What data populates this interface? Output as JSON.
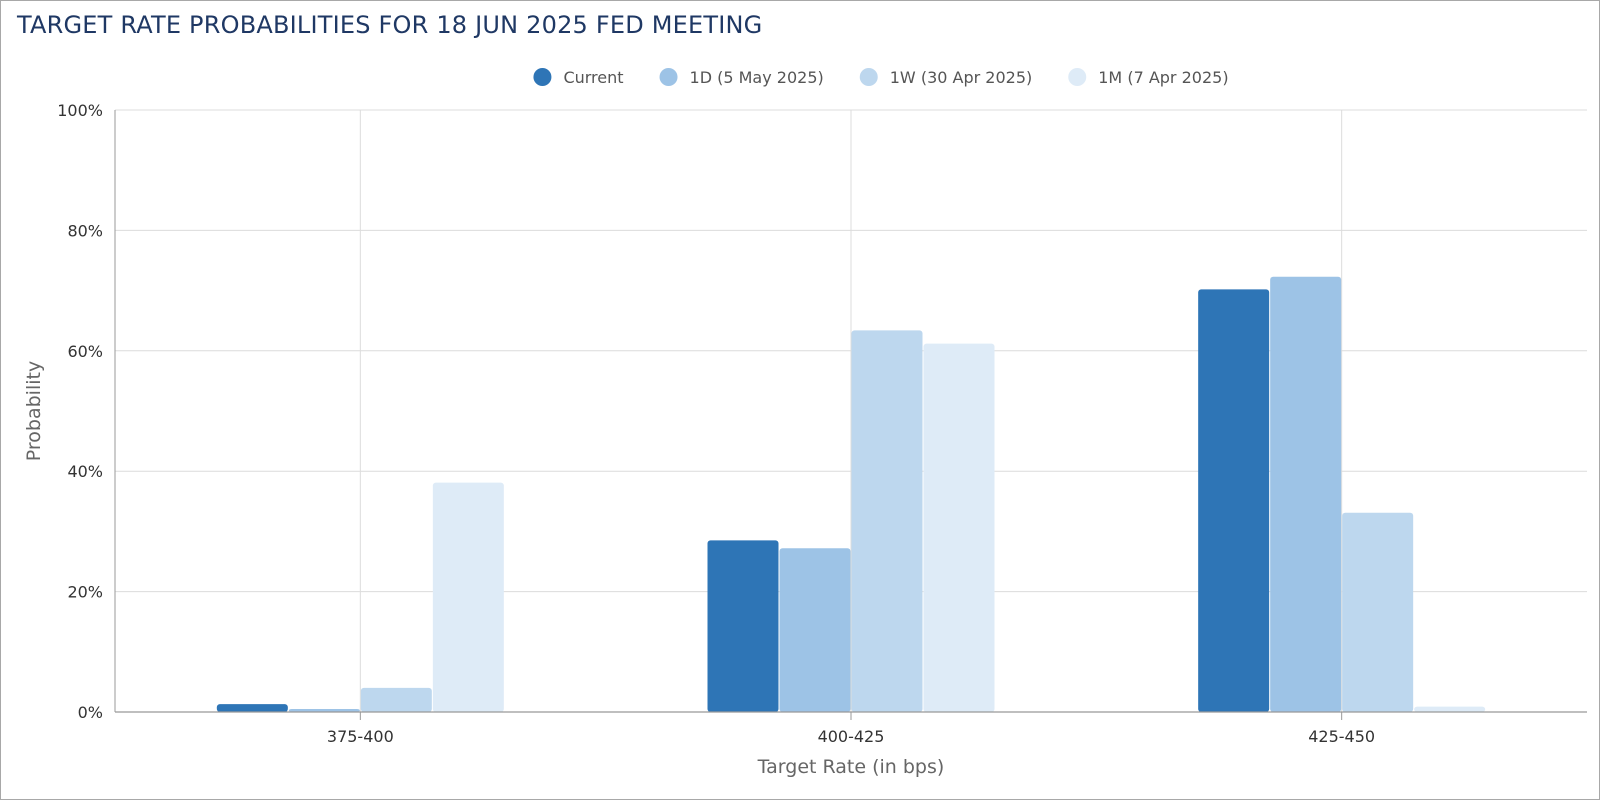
{
  "chart_data": {
    "type": "bar",
    "title": "TARGET RATE PROBABILITIES FOR 18 JUN 2025 FED MEETING",
    "xlabel": "Target Rate (in bps)",
    "ylabel": "Probability",
    "categories": [
      "375-400",
      "400-425",
      "425-450"
    ],
    "ylim": [
      0,
      100
    ],
    "yticks": [
      "0%",
      "20%",
      "40%",
      "60%",
      "80%",
      "100%"
    ],
    "ytick_values": [
      0,
      20,
      40,
      60,
      80,
      100
    ],
    "grid": true,
    "legend_position": "top-center",
    "series": [
      {
        "name": "Current",
        "color": "#2e75b6",
        "values": [
          1.3,
          28.5,
          70.2
        ]
      },
      {
        "name": "1D (5 May 2025)",
        "color": "#9dc3e6",
        "values": [
          0.5,
          27.2,
          72.3
        ]
      },
      {
        "name": "1W (30 Apr 2025)",
        "color": "#bdd7ee",
        "values": [
          4.0,
          63.4,
          33.1
        ]
      },
      {
        "name": "1M (7 Apr 2025)",
        "color": "#deebf7",
        "values": [
          38.1,
          61.2,
          0.9
        ]
      }
    ]
  }
}
